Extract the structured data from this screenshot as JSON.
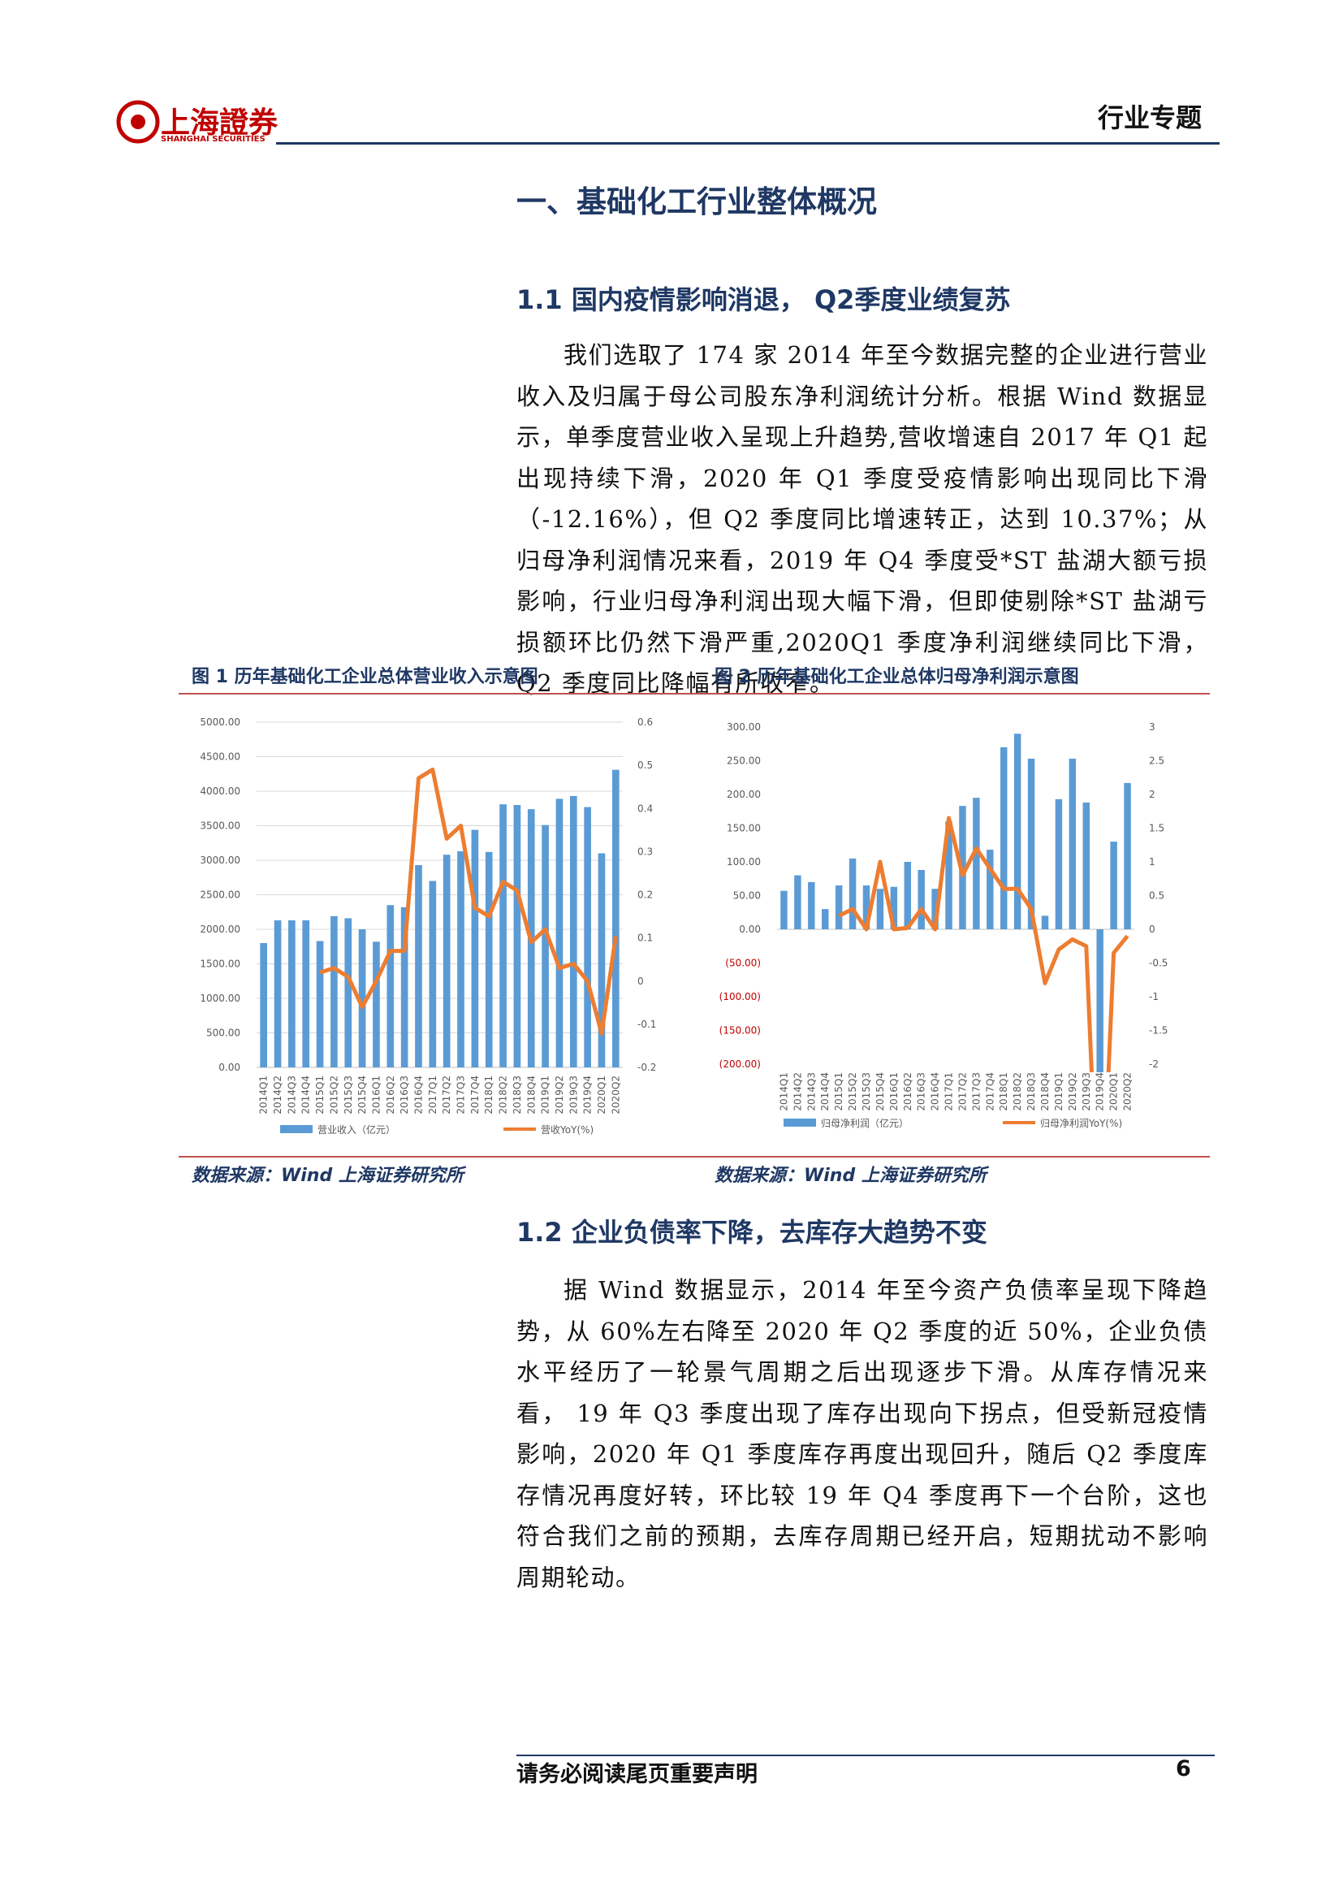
{
  "header": {
    "logo_cn": "上海證券",
    "logo_en": "SHANGHAI SECURITIES",
    "category": "行业专题"
  },
  "section_title": "一、基础化工行业整体概况",
  "sub1": {
    "title": "1.1 国内疫情影响消退， Q2季度业绩复苏",
    "paragraph": "我们选取了 174 家 2014 年至今数据完整的企业进行营业收入及归属于母公司股东净利润统计分析。根据 Wind 数据显示，单季度营业收入呈现上升趋势,营收增速自 2017 年 Q1 起出现持续下滑，2020 年 Q1 季度受疫情影响出现同比下滑（-12.16%），但 Q2 季度同比增速转正，达到 10.37%；从归母净利润情况来看，2019 年 Q4 季度受*ST 盐湖大额亏损影响，行业归母净利润出现大幅下滑，但即使剔除*ST 盐湖亏损额环比仍然下滑严重,2020Q1 季度净利润继续同比下滑，Q2 季度同比降幅有所收窄。"
  },
  "chart_data": [
    {
      "type": "combo",
      "title": "图 1 历年基础化工企业总体营业收入示意图",
      "source": "数据来源：Wind 上海证券研究所",
      "categories": [
        "2014Q1",
        "2014Q2",
        "2014Q3",
        "2014Q4",
        "2015Q1",
        "2015Q2",
        "2015Q3",
        "2015Q4",
        "2016Q1",
        "2016Q2",
        "2016Q3",
        "2016Q4",
        "2017Q1",
        "2017Q2",
        "2017Q3",
        "2017Q4",
        "2018Q1",
        "2018Q2",
        "2018Q3",
        "2018Q4",
        "2019Q1",
        "2019Q2",
        "2019Q3",
        "2019Q4",
        "2020Q1",
        "2020Q2"
      ],
      "series": [
        {
          "name": "营业收入（亿元）",
          "color": "#5b9bd5",
          "values": [
            1800,
            2130,
            2130,
            2130,
            1830,
            2190,
            2160,
            2000,
            1820,
            2350,
            2320,
            2930,
            2700,
            3080,
            3130,
            3440,
            3120,
            3810,
            3800,
            3740,
            3510,
            3890,
            3930,
            3770,
            3100,
            4310
          ]
        },
        {
          "name": "营收YoY(%)",
          "color": "#ed7d31",
          "axis": "y2",
          "values": [
            null,
            null,
            null,
            null,
            0.02,
            0.03,
            0.01,
            -0.06,
            0.0,
            0.07,
            0.07,
            0.47,
            0.49,
            0.33,
            0.36,
            0.17,
            0.15,
            0.23,
            0.21,
            0.09,
            0.12,
            0.03,
            0.04,
            0.0,
            -0.1216,
            0.1037
          ]
        }
      ],
      "ylim": [
        0,
        5000
      ],
      "yticks": [
        {
          "value": 0,
          "label": "0.00"
        },
        {
          "value": 500,
          "label": "500.00"
        },
        {
          "value": 1000,
          "label": "1000.00"
        },
        {
          "value": 1500,
          "label": "1500.00"
        },
        {
          "value": 2000,
          "label": "2000.00"
        },
        {
          "value": 2500,
          "label": "2500.00"
        },
        {
          "value": 3000,
          "label": "3000.00"
        },
        {
          "value": 3500,
          "label": "3500.00"
        },
        {
          "value": 4000,
          "label": "4000.00"
        },
        {
          "value": 4500,
          "label": "4500.00"
        },
        {
          "value": 5000,
          "label": "5000.00"
        }
      ],
      "y2lim": [
        -0.2,
        0.6
      ],
      "y2ticks": [
        -0.2,
        -0.1,
        0,
        0.1,
        0.2,
        0.3,
        0.4,
        0.5,
        0.6
      ],
      "grid": true
    },
    {
      "type": "combo",
      "title": "图 2 历年基础化工企业总体归母净利润示意图",
      "source": "数据来源：Wind 上海证券研究所",
      "categories": [
        "2014Q1",
        "2014Q2",
        "2014Q3",
        "2014Q4",
        "2015Q1",
        "2015Q2",
        "2015Q3",
        "2015Q4",
        "2016Q1",
        "2016Q2",
        "2016Q3",
        "2016Q4",
        "2017Q1",
        "2017Q2",
        "2017Q3",
        "2017Q4",
        "2018Q1",
        "2018Q2",
        "2018Q3",
        "2018Q4",
        "2019Q1",
        "2019Q2",
        "2019Q3",
        "2019Q4",
        "2020Q1",
        "2020Q2"
      ],
      "series": [
        {
          "name": "归母净利润（亿元）",
          "color": "#5b9bd5",
          "values": [
            57,
            80,
            70,
            30,
            65,
            105,
            65,
            60,
            63,
            100,
            88,
            60,
            160,
            183,
            195,
            118,
            270,
            290,
            253,
            20,
            193,
            253,
            188,
            -290,
            130,
            217
          ]
        },
        {
          "name": "归母净利润YoY(%)",
          "color": "#ed7d31",
          "axis": "y2",
          "values": [
            null,
            null,
            null,
            null,
            0.2,
            0.3,
            0.0,
            1.0,
            0.0,
            0.02,
            0.3,
            0.0,
            1.65,
            0.8,
            1.2,
            0.9,
            0.6,
            0.6,
            0.3,
            -0.8,
            -0.3,
            -0.15,
            -0.25,
            -5,
            -0.35,
            -0.1
          ]
        }
      ],
      "ylim": [
        -200,
        300
      ],
      "yticks": [
        {
          "value": -200,
          "label": "(200.00)"
        },
        {
          "value": -150,
          "label": "(150.00)"
        },
        {
          "value": -100,
          "label": "(100.00)"
        },
        {
          "value": -50,
          "label": "(50.00)"
        },
        {
          "value": 0,
          "label": "0.00"
        },
        {
          "value": 50,
          "label": "50.00"
        },
        {
          "value": 100,
          "label": "100.00"
        },
        {
          "value": 150,
          "label": "150.00"
        },
        {
          "value": 200,
          "label": "200.00"
        },
        {
          "value": 250,
          "label": "250.00"
        },
        {
          "value": 300,
          "label": "300.00"
        }
      ],
      "y2lim": [
        -2,
        3
      ],
      "y2ticks": [
        -2,
        -1.5,
        -1,
        -0.5,
        0,
        0.5,
        1,
        1.5,
        2,
        2.5,
        3
      ],
      "grid": false
    }
  ],
  "sub2": {
    "title": "1.2 企业负债率下降，去库存大趋势不变",
    "paragraph": "据 Wind 数据显示，2014 年至今资产负债率呈现下降趋势，从 60%左右降至 2020 年 Q2 季度的近 50%，企业负债水平经历了一轮景气周期之后出现逐步下滑。从库存情况来看， 19 年 Q3 季度出现了库存出现向下拐点，但受新冠疫情影响，2020 年 Q1 季度库存再度出现回升，随后 Q2 季度库存情况再度好转，环比较 19 年 Q4 季度再下一个台阶，这也符合我们之前的预期，去库存周期已经开启，短期扰动不影响周期轮动。"
  },
  "footer": {
    "notice": "请务必阅读尾页重要声明",
    "page": "6"
  }
}
